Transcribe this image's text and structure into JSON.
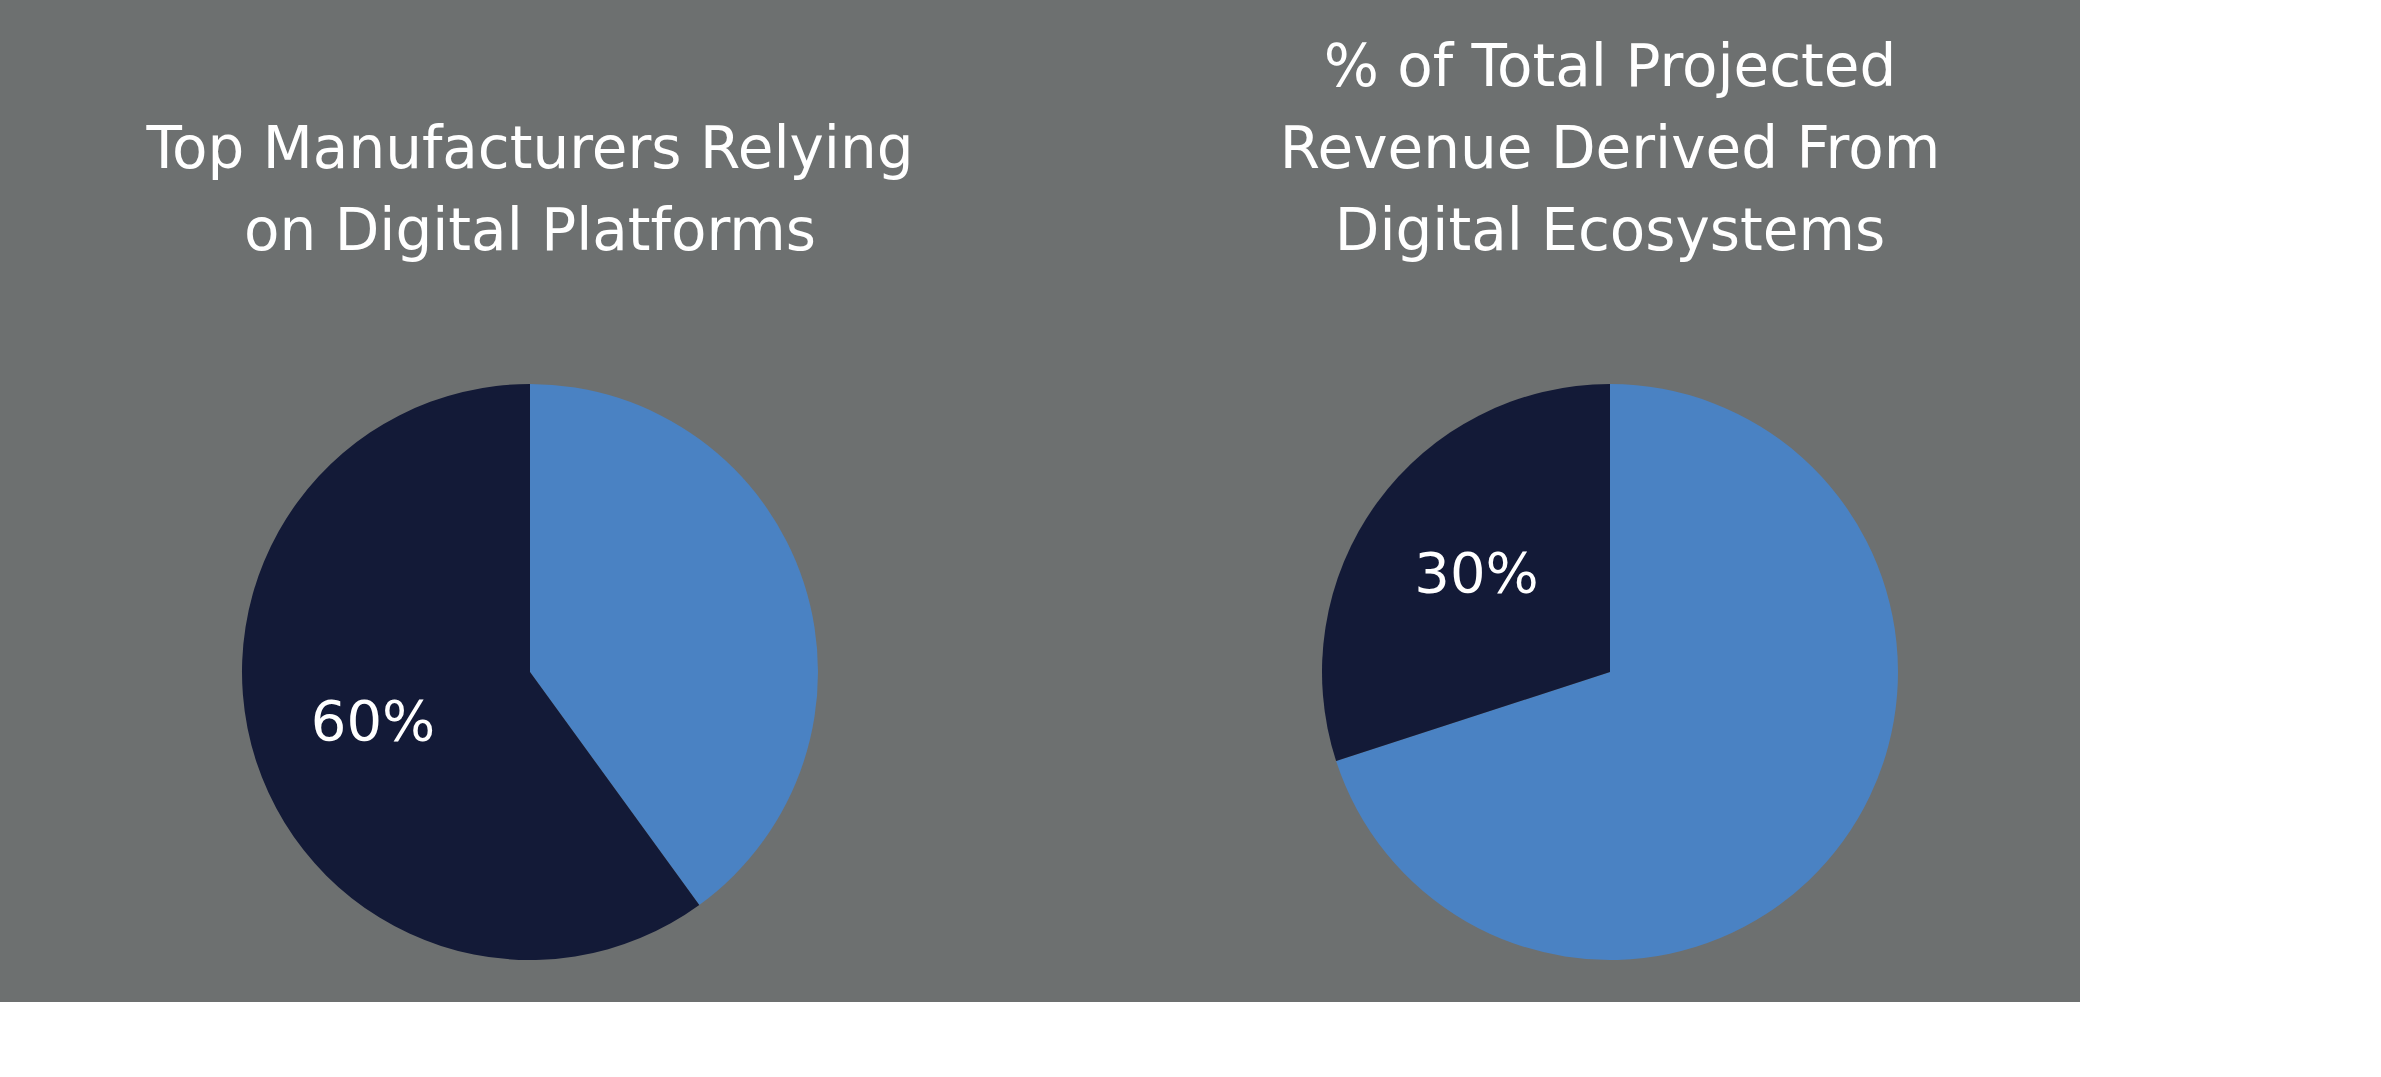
{
  "chart_data": [
    {
      "type": "pie",
      "title": "Top Manufacturers Relying on Digital Platforms",
      "categories": [
        null,
        null
      ],
      "values": [
        40,
        60
      ],
      "colors": [
        "#4a82c3",
        "#131a37"
      ],
      "value_labels": [
        null,
        "60%"
      ],
      "legend": false
    },
    {
      "type": "pie",
      "title": "% of Total Projected Revenue Derived From Digital Ecosystems",
      "categories": [
        null,
        null
      ],
      "values": [
        70,
        30
      ],
      "colors": [
        "#4a82c3",
        "#131a37"
      ],
      "value_labels": [
        null,
        "30%"
      ],
      "legend": false
    }
  ]
}
